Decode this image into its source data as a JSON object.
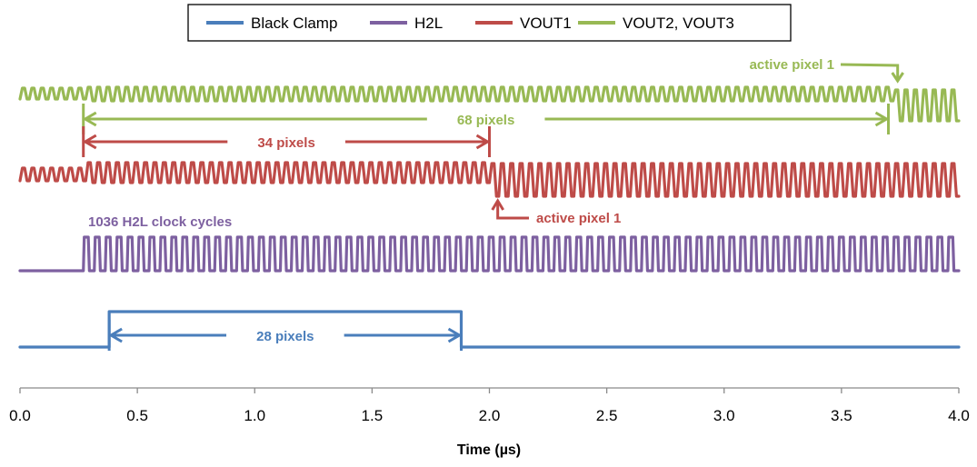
{
  "chart_data": {
    "type": "line",
    "title": "",
    "xlabel": "Time (µs)",
    "ylabel": "",
    "xlim": [
      0.0,
      4.0
    ],
    "x_ticks": [
      "0.0",
      "0.5",
      "1.0",
      "1.5",
      "2.0",
      "2.5",
      "3.0",
      "3.5",
      "4.0"
    ],
    "grid": false,
    "legend_position": "top",
    "y_axis_visible": false,
    "series": [
      {
        "name": "Black Clamp",
        "color": "#4a7ebb",
        "shape": "single pulse",
        "rise_time": 0.38,
        "fall_time": 1.88
      },
      {
        "name": "H2L",
        "color": "#7d60a0",
        "shape": "clock",
        "start_time": 0.27,
        "end_time": 4.0,
        "cycles_shown": 80
      },
      {
        "name": "VOUT1",
        "color": "#be4b48",
        "shape": "pixel output",
        "start_time": 0.0,
        "end_time": 4.0,
        "cycles_shown": 100,
        "active_pixel_time": 2.0
      },
      {
        "name": "VOUT2, VOUT3",
        "color": "#98b954",
        "shape": "pixel output",
        "start_time": 0.0,
        "end_time": 4.0,
        "cycles_shown": 100,
        "active_pixel_time": 3.7
      }
    ],
    "annotations": [
      {
        "text": "68 pixels",
        "color": "#98b954",
        "x_start": 0.27,
        "x_end": 3.7
      },
      {
        "text": "34 pixels",
        "color": "#be4b48",
        "x_start": 0.27,
        "x_end": 2.0
      },
      {
        "text": "28 pixels",
        "color": "#4a7ebb",
        "x_start": 0.38,
        "x_end": 1.88
      },
      {
        "text": "active pixel 1",
        "color": "#98b954",
        "x": 3.72,
        "series": "VOUT2, VOUT3"
      },
      {
        "text": "active pixel 1",
        "color": "#be4b48",
        "x": 2.02,
        "series": "VOUT1"
      },
      {
        "text": "1036 H2L clock cycles",
        "color": "#7d60a0",
        "x": 0.3,
        "series": "H2L"
      }
    ]
  }
}
